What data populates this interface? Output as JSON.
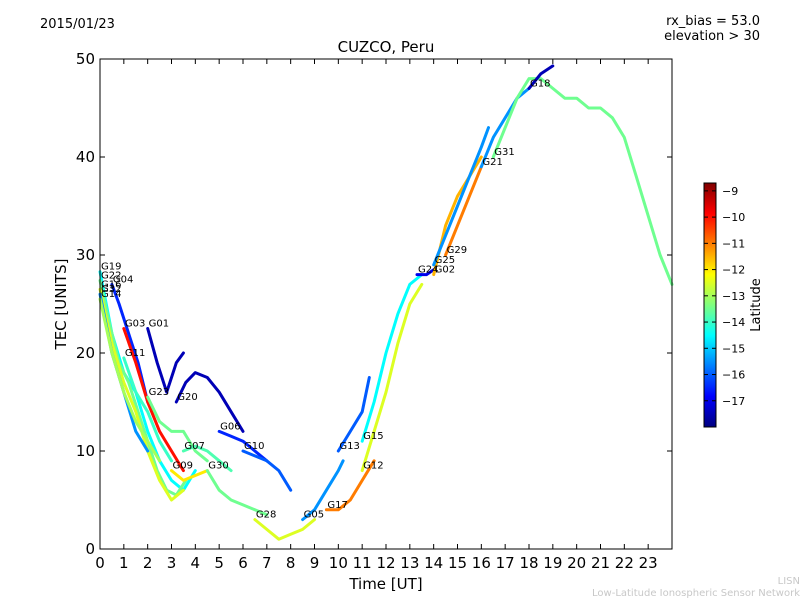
{
  "header": {
    "date": "2015/01/23",
    "rx_bias": "rx_bias = 53.0",
    "elevation": "elevation > 30",
    "title": "CUZCO, Peru"
  },
  "footer": {
    "credit_short": "LISN",
    "credit_long": "Low-Latitude Ionospheric Sensor Network"
  },
  "colors": {
    "jet": [
      "#00007f",
      "#0000ff",
      "#007fff",
      "#00ffff",
      "#7fff7f",
      "#ffff00",
      "#ff7f00",
      "#ff0000",
      "#7f0000"
    ]
  },
  "chart_data": {
    "type": "scatter",
    "title": "CUZCO, Peru",
    "xlabel": "Time [UT]",
    "ylabel": "TEC [UNITS]",
    "xlim": [
      0,
      24
    ],
    "ylim": [
      0,
      50
    ],
    "x_ticks": [
      "0",
      "1",
      "2",
      "3",
      "4",
      "5",
      "6",
      "7",
      "8",
      "9",
      "10",
      "11",
      "12",
      "13",
      "14",
      "15",
      "16",
      "17",
      "18",
      "19",
      "20",
      "21",
      "22",
      "23"
    ],
    "y_ticks": [
      "0",
      "10",
      "20",
      "30",
      "40",
      "50"
    ],
    "colorbar": {
      "label": "Latitude",
      "range": [
        -18,
        -8.7
      ],
      "ticks": [
        "−9",
        "−10",
        "−11",
        "−12",
        "−13",
        "−14",
        "−15",
        "−16",
        "−17"
      ],
      "tick_values": [
        -9,
        -10,
        -11,
        -12,
        -13,
        -14,
        -15,
        -16,
        -17
      ]
    },
    "series": [
      {
        "name": "G19",
        "lat": -14.5,
        "points": [
          [
            0,
            28.3
          ],
          [
            0.5,
            22
          ],
          [
            1,
            18
          ],
          [
            1.5,
            16
          ],
          [
            2,
            12
          ],
          [
            2.5,
            9
          ],
          [
            3,
            7
          ],
          [
            3.5,
            6
          ],
          [
            4,
            8
          ]
        ]
      },
      {
        "name": "G22",
        "lat": -13.5,
        "points": [
          [
            0,
            27.4
          ],
          [
            0.4,
            23
          ],
          [
            0.8,
            19
          ],
          [
            1.2,
            17
          ],
          [
            1.6,
            14
          ],
          [
            2,
            11
          ],
          [
            2.4,
            8
          ],
          [
            2.8,
            6
          ],
          [
            3.2,
            5.5
          ],
          [
            3.6,
            7
          ]
        ]
      },
      {
        "name": "G16",
        "lat": -12.5,
        "points": [
          [
            0,
            26.5
          ],
          [
            0.5,
            21
          ],
          [
            1,
            17
          ],
          [
            1.5,
            14
          ],
          [
            2,
            10
          ],
          [
            2.5,
            7
          ],
          [
            3,
            5
          ],
          [
            3.5,
            6
          ]
        ]
      },
      {
        "name": "G04",
        "lat": -16.5,
        "points": [
          [
            0.5,
            27
          ],
          [
            0.8,
            25
          ],
          [
            1.2,
            22
          ],
          [
            1.6,
            19
          ],
          [
            2,
            15
          ]
        ]
      },
      {
        "name": "G32",
        "lat": -15.5,
        "points": [
          [
            0,
            26
          ],
          [
            0.5,
            20
          ],
          [
            1,
            16
          ],
          [
            1.5,
            12
          ],
          [
            2,
            10
          ]
        ]
      },
      {
        "name": "G14",
        "lat": -13.0,
        "points": [
          [
            0,
            25.5
          ],
          [
            0.5,
            20
          ],
          [
            1,
            16
          ],
          [
            1.5,
            13
          ],
          [
            2,
            11
          ],
          [
            2.5,
            9
          ]
        ]
      },
      {
        "name": "G03",
        "lat": -10.0,
        "points": [
          [
            1,
            22.5
          ],
          [
            1.5,
            19
          ],
          [
            2,
            15
          ],
          [
            2.5,
            12
          ],
          [
            3,
            10
          ],
          [
            3.5,
            8
          ]
        ]
      },
      {
        "name": "G01",
        "lat": -17.5,
        "points": [
          [
            2,
            22.5
          ],
          [
            2.4,
            19
          ],
          [
            2.8,
            16
          ],
          [
            3.2,
            19
          ],
          [
            3.5,
            20
          ]
        ]
      },
      {
        "name": "G11",
        "lat": -14.0,
        "points": [
          [
            1,
            19.5
          ],
          [
            1.5,
            16
          ],
          [
            2,
            14
          ],
          [
            2.5,
            11
          ],
          [
            3,
            9
          ]
        ]
      },
      {
        "name": "G23",
        "lat": -13.5,
        "points": [
          [
            2,
            15.5
          ],
          [
            2.5,
            13
          ],
          [
            3,
            12
          ],
          [
            3.5,
            12
          ],
          [
            4,
            10
          ],
          [
            4.5,
            9
          ]
        ]
      },
      {
        "name": "G09",
        "lat": -12.0,
        "points": [
          [
            3,
            8
          ],
          [
            3.5,
            7
          ],
          [
            4,
            7.5
          ],
          [
            4.5,
            8
          ]
        ]
      },
      {
        "name": "G07",
        "lat": -13.8,
        "points": [
          [
            3.5,
            10
          ],
          [
            4,
            10.5
          ],
          [
            4.5,
            10
          ],
          [
            5,
            9
          ],
          [
            5.5,
            8
          ]
        ]
      },
      {
        "name": "G20",
        "lat": -17.5,
        "points": [
          [
            3.2,
            15
          ],
          [
            3.6,
            17
          ],
          [
            4,
            18
          ],
          [
            4.5,
            17.5
          ],
          [
            5,
            16
          ],
          [
            5.5,
            14
          ],
          [
            6,
            12
          ]
        ]
      },
      {
        "name": "G06",
        "lat": -16.5,
        "points": [
          [
            5,
            12
          ],
          [
            5.5,
            11.5
          ],
          [
            6,
            11
          ],
          [
            6.5,
            10
          ],
          [
            7,
            9
          ]
        ]
      },
      {
        "name": "G10",
        "lat": -16.0,
        "points": [
          [
            6,
            10
          ],
          [
            6.5,
            9.5
          ],
          [
            7,
            9
          ],
          [
            7.5,
            8
          ],
          [
            8,
            6
          ]
        ]
      },
      {
        "name": "G30",
        "lat": -13.5,
        "points": [
          [
            4.5,
            8
          ],
          [
            5,
            6
          ],
          [
            5.5,
            5
          ],
          [
            6,
            4.5
          ],
          [
            6.5,
            4
          ],
          [
            7,
            3.5
          ]
        ]
      },
      {
        "name": "G28",
        "lat": -12.5,
        "points": [
          [
            6.5,
            3
          ],
          [
            7,
            2
          ],
          [
            7.5,
            1
          ],
          [
            8,
            1.5
          ],
          [
            8.5,
            2
          ],
          [
            9,
            3
          ]
        ]
      },
      {
        "name": "G05",
        "lat": -15.5,
        "points": [
          [
            8.5,
            3
          ],
          [
            9,
            4
          ],
          [
            9.5,
            6
          ],
          [
            10,
            8
          ],
          [
            10.2,
            9
          ]
        ]
      },
      {
        "name": "G13",
        "lat": -16.0,
        "points": [
          [
            10,
            10
          ],
          [
            10.5,
            12
          ],
          [
            11,
            14
          ],
          [
            11.3,
            17.5
          ]
        ]
      },
      {
        "name": "G17",
        "lat": -11.0,
        "points": [
          [
            9.5,
            4
          ],
          [
            10,
            4
          ],
          [
            10.5,
            5
          ],
          [
            11,
            7
          ],
          [
            11.5,
            9
          ]
        ]
      },
      {
        "name": "G15",
        "lat": -14.5,
        "points": [
          [
            11,
            11
          ],
          [
            11.5,
            15
          ],
          [
            12,
            20
          ],
          [
            12.5,
            24
          ],
          [
            13,
            27
          ],
          [
            13.5,
            28
          ]
        ]
      },
      {
        "name": "G12",
        "lat": -12.5,
        "points": [
          [
            11,
            8
          ],
          [
            11.5,
            12
          ],
          [
            12,
            16
          ],
          [
            12.5,
            21
          ],
          [
            13,
            25
          ],
          [
            13.5,
            27
          ]
        ]
      },
      {
        "name": "G24",
        "lat": -17.0,
        "points": [
          [
            13.3,
            28
          ],
          [
            13.7,
            28
          ],
          [
            14,
            28.5
          ]
        ]
      },
      {
        "name": "G02",
        "lat": -11.5,
        "points": [
          [
            14,
            28
          ],
          [
            14.5,
            33
          ],
          [
            15,
            36
          ],
          [
            15.5,
            38
          ],
          [
            16,
            40
          ]
        ]
      },
      {
        "name": "G29",
        "lat": -11.0,
        "points": [
          [
            14.5,
            30
          ],
          [
            15,
            33
          ],
          [
            15.5,
            36
          ],
          [
            16,
            39
          ]
        ]
      },
      {
        "name": "G25",
        "lat": -15.5,
        "points": [
          [
            14,
            29
          ],
          [
            14.5,
            32
          ],
          [
            15,
            35
          ],
          [
            15.5,
            38
          ],
          [
            16,
            41
          ],
          [
            16.3,
            43
          ]
        ]
      },
      {
        "name": "G21",
        "lat": -15.5,
        "points": [
          [
            16,
            39
          ],
          [
            16.5,
            42
          ],
          [
            17,
            44
          ],
          [
            17.5,
            46
          ],
          [
            18,
            47
          ]
        ]
      },
      {
        "name": "G31",
        "lat": -13.5,
        "points": [
          [
            16.5,
            40
          ],
          [
            17,
            43
          ],
          [
            17.5,
            46
          ],
          [
            18,
            48
          ],
          [
            18.5,
            48
          ],
          [
            19,
            47
          ],
          [
            19.5,
            46
          ],
          [
            20,
            46
          ],
          [
            20.5,
            45
          ],
          [
            21,
            45
          ],
          [
            21.5,
            44
          ],
          [
            22,
            42
          ],
          [
            22.5,
            38
          ],
          [
            23,
            34
          ],
          [
            23.5,
            30
          ],
          [
            24,
            27
          ]
        ]
      },
      {
        "name": "G18",
        "lat": -17.5,
        "points": [
          [
            18,
            47
          ],
          [
            18.5,
            48.5
          ],
          [
            19,
            49.3
          ]
        ]
      }
    ]
  }
}
